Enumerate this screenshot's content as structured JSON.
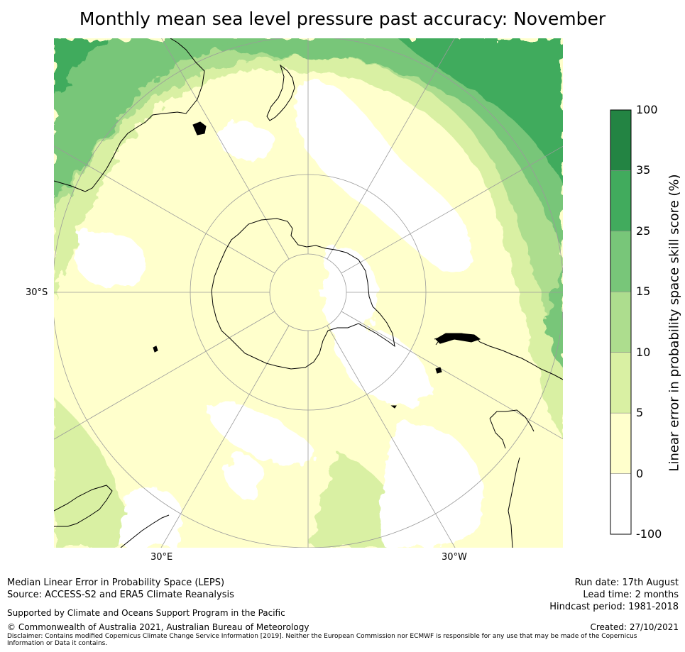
{
  "title": "Monthly mean sea level pressure past accuracy: November",
  "map": {
    "projection": "south-polar stereographic",
    "lat_label_left": "30°S",
    "lon_label_left": "30°E",
    "lon_label_right": "30°W",
    "fill_colors": {
      "lt0": "#ffffff",
      "c0_5": "#ffffcc",
      "c5_10": "#d9f0a3",
      "c10_15": "#addd8e",
      "c15_25": "#78c679",
      "c25_35": "#41ab5d",
      "c35_100": "#238443"
    },
    "coast_color": "#000000",
    "grid_color": "#9a9a9a"
  },
  "colorbar": {
    "title": "Linear error in probability space skill score (%)",
    "ticks": [
      "100",
      "35",
      "25",
      "15",
      "10",
      "5",
      "0",
      "-100"
    ],
    "colors": [
      "#238443",
      "#41ab5d",
      "#78c679",
      "#addd8e",
      "#d9f0a3",
      "#ffffcc",
      "#ffffff"
    ]
  },
  "footer": {
    "left_line1": "Median Linear Error in Probability Space (LEPS)",
    "left_line2": "Source: ACCESS-S2 and ERA5 Climate Reanalysis",
    "supported": "Supported by Climate and Oceans Support Program in the Pacific",
    "copyright": "© Commonwealth of Australia 2021, Australian Bureau of Meteorology",
    "disclaimer": "Disclaimer: Contains modified Copernicus Climate Change Service Information [2019]. Neither the European Commission nor ECMWF is responsible for any use that may be made of the Copernicus Information or Data it contains.",
    "run_date": "Run date: 17th August",
    "lead_time": "Lead time: 2 months",
    "hindcast": "Hindcast period: 1981-2018",
    "created": "Created: 27/10/2021"
  }
}
